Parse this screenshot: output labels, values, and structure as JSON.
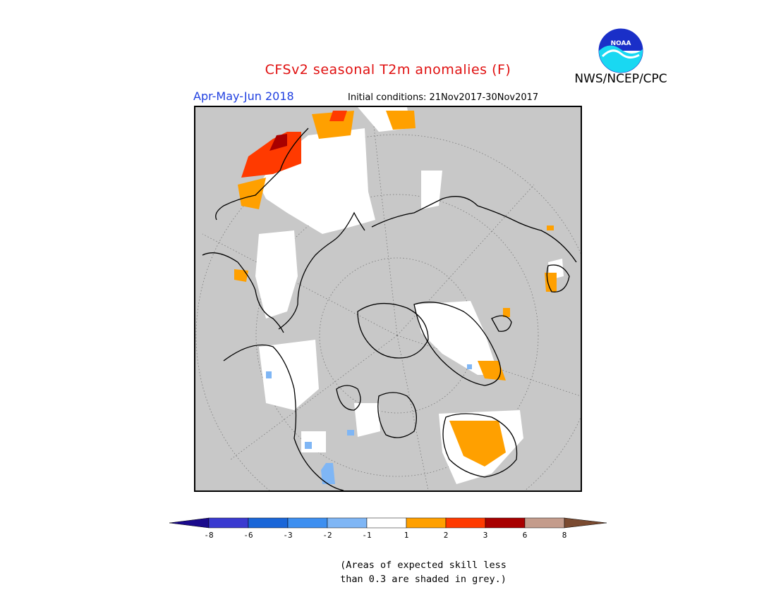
{
  "header": {
    "title": "CFSv2 seasonal T2m anomalies (F)",
    "season": "Apr-May-Jun 2018",
    "initial_conditions": "Initial conditions: 21Nov2017-30Nov2017",
    "agency": "NWS/NCEP/CPC",
    "logo_text": "NOAA"
  },
  "map": {
    "projection": "north-polar-stereographic",
    "background_grey_meaning": "low-skill",
    "grid": "dotted latitude/longitude circles"
  },
  "legend": {
    "ticks": [
      "-8",
      "-6",
      "-3",
      "-2",
      "-1",
      "1",
      "2",
      "3",
      "6",
      "8"
    ],
    "colors": [
      "#1a0a8c",
      "#3a3ad0",
      "#1a66d8",
      "#3d8ff0",
      "#7fb6f5",
      "#ffffff",
      "#ffa000",
      "#ff3a00",
      "#a80000",
      "#c49c8c",
      "#7a4a30"
    ]
  },
  "note": {
    "line1": "(Areas of expected skill less",
    "line2": "than 0.3 are shaded in grey.)"
  }
}
